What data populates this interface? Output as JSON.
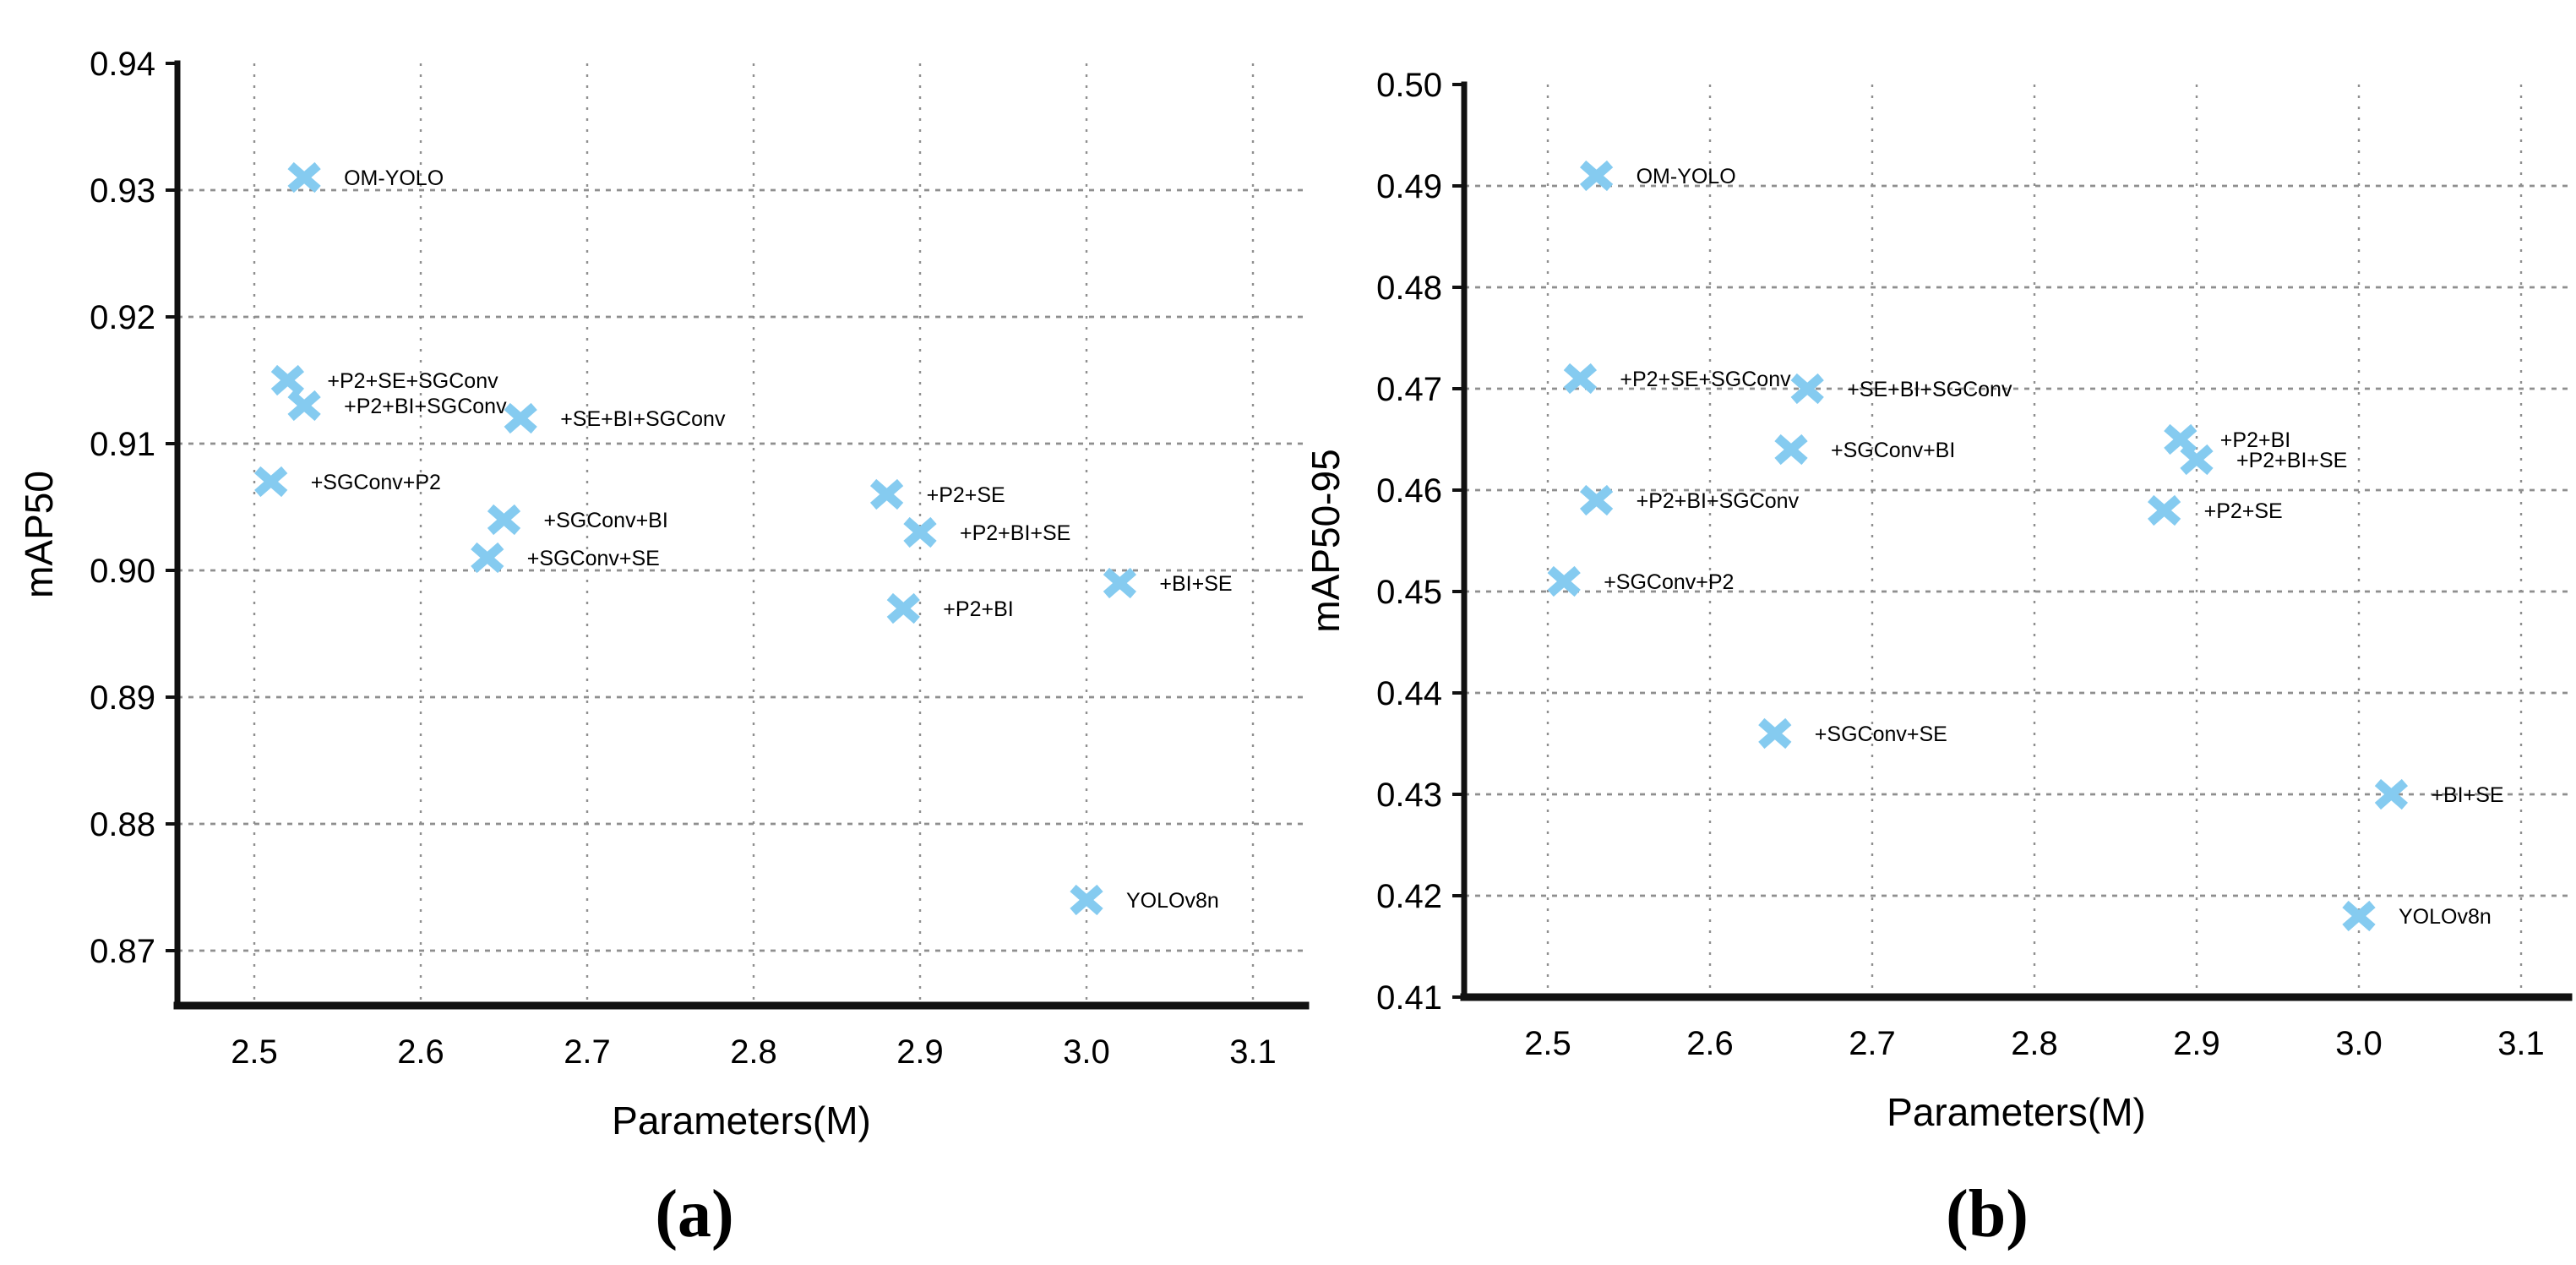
{
  "figure": {
    "background": "#ffffff",
    "marker_color": "#85CBF0",
    "grid_color": "#8f8f8f",
    "axis_color": "#111111",
    "text_color": "#000000",
    "marker_glyph": "x-cross"
  },
  "chart_data": [
    {
      "id": "a",
      "type": "scatter",
      "caption": "(a)",
      "title": "",
      "xlabel": "Parameters(M)",
      "ylabel": "mAP50",
      "xlim": [
        2.45,
        3.13
      ],
      "ylim": [
        0.866,
        0.94
      ],
      "grid": "dotted",
      "legend_position": "none",
      "xticks": [
        "2.5",
        "2.6",
        "2.7",
        "2.8",
        "2.9",
        "3.0",
        "3.1"
      ],
      "yticks": [
        {
          "v": 0.87,
          "label": "0.87",
          "grid": true
        },
        {
          "v": 0.88,
          "label": "0.88",
          "grid": true
        },
        {
          "v": 0.89,
          "label": "0.89",
          "grid": true
        },
        {
          "v": 0.9,
          "label": "0.90",
          "grid": true
        },
        {
          "v": 0.91,
          "label": "0.91",
          "grid": true
        },
        {
          "v": 0.92,
          "label": "0.92",
          "grid": true
        },
        {
          "v": 0.93,
          "label": "0.93",
          "grid": true
        },
        {
          "v": 0.94,
          "label": "0.94",
          "grid": false
        }
      ],
      "points": [
        {
          "label": "OM-YOLO",
          "x": 2.53,
          "y": 0.931
        },
        {
          "label": "+P2+SE+SGConv",
          "x": 2.52,
          "y": 0.915
        },
        {
          "label": "+P2+BI+SGConv",
          "x": 2.53,
          "y": 0.913
        },
        {
          "label": "+SE+BI+SGConv",
          "x": 2.66,
          "y": 0.912
        },
        {
          "label": "+SGConv+P2",
          "x": 2.51,
          "y": 0.907
        },
        {
          "label": "+P2+SE",
          "x": 2.88,
          "y": 0.906
        },
        {
          "label": "+SGConv+BI",
          "x": 2.65,
          "y": 0.904
        },
        {
          "label": "+P2+BI+SE",
          "x": 2.9,
          "y": 0.903
        },
        {
          "label": "+SGConv+SE",
          "x": 2.64,
          "y": 0.901
        },
        {
          "label": "+BI+SE",
          "x": 3.02,
          "y": 0.899
        },
        {
          "label": "+P2+BI",
          "x": 2.89,
          "y": 0.897
        },
        {
          "label": "YOLOv8n",
          "x": 3.0,
          "y": 0.874
        }
      ]
    },
    {
      "id": "b",
      "type": "scatter",
      "caption": "(b)",
      "title": "",
      "xlabel": "Parameters(M)",
      "ylabel": "mAP50-95",
      "xlim": [
        2.45,
        3.13
      ],
      "ylim": [
        0.41,
        0.5
      ],
      "grid": "dotted",
      "legend_position": "none",
      "xticks": [
        "2.5",
        "2.6",
        "2.7",
        "2.8",
        "2.9",
        "3.0",
        "3.1"
      ],
      "yticks": [
        {
          "v": 0.41,
          "label": "0.41",
          "grid": false
        },
        {
          "v": 0.42,
          "label": "0.42",
          "grid": true
        },
        {
          "v": 0.43,
          "label": "0.43",
          "grid": true
        },
        {
          "v": 0.44,
          "label": "0.44",
          "grid": true
        },
        {
          "v": 0.45,
          "label": "0.45",
          "grid": true
        },
        {
          "v": 0.46,
          "label": "0.46",
          "grid": true
        },
        {
          "v": 0.47,
          "label": "0.47",
          "grid": true
        },
        {
          "v": 0.48,
          "label": "0.48",
          "grid": true
        },
        {
          "v": 0.49,
          "label": "0.49",
          "grid": true
        },
        {
          "v": 0.5,
          "label": "0.50",
          "grid": false
        }
      ],
      "points": [
        {
          "label": "OM-YOLO",
          "x": 2.53,
          "y": 0.491
        },
        {
          "label": "+P2+SE+SGConv",
          "x": 2.52,
          "y": 0.471
        },
        {
          "label": "+SE+BI+SGConv",
          "x": 2.66,
          "y": 0.47
        },
        {
          "label": "+P2+BI",
          "x": 2.89,
          "y": 0.465
        },
        {
          "label": "+SGConv+BI",
          "x": 2.65,
          "y": 0.464
        },
        {
          "label": "+P2+BI+SE",
          "x": 2.9,
          "y": 0.463
        },
        {
          "label": "+P2+BI+SGConv",
          "x": 2.53,
          "y": 0.459
        },
        {
          "label": "+P2+SE",
          "x": 2.88,
          "y": 0.458
        },
        {
          "label": "+SGConv+P2",
          "x": 2.51,
          "y": 0.451
        },
        {
          "label": "+SGConv+SE",
          "x": 2.64,
          "y": 0.436
        },
        {
          "label": "+BI+SE",
          "x": 3.02,
          "y": 0.43
        },
        {
          "label": "YOLOv8n",
          "x": 3.0,
          "y": 0.418
        }
      ]
    }
  ]
}
